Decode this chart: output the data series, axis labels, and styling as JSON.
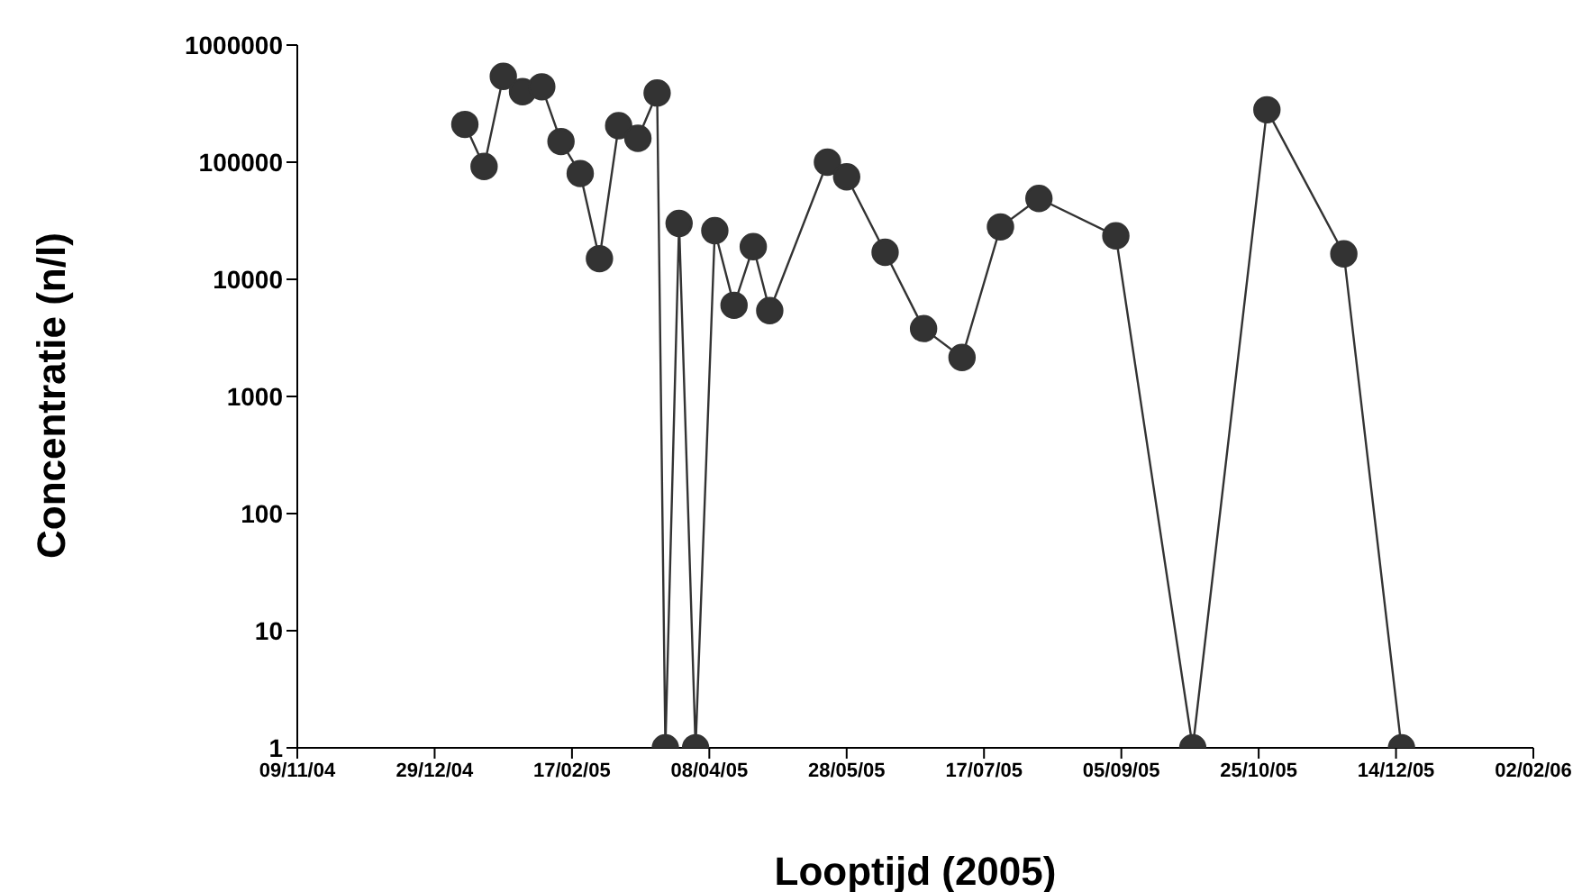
{
  "chart_data": {
    "type": "line",
    "xlabel": "Looptijd (2005)",
    "ylabel": "Concentratie (n/l)",
    "x": [
      "2005-01-09",
      "2005-01-16",
      "2005-01-23",
      "2005-01-30",
      "2005-02-06",
      "2005-02-13",
      "2005-02-20",
      "2005-02-27",
      "2005-03-06",
      "2005-03-13",
      "2005-03-20",
      "2005-03-23",
      "2005-03-28",
      "2005-04-03",
      "2005-04-10",
      "2005-04-17",
      "2005-04-24",
      "2005-04-30",
      "2005-05-21",
      "2005-05-28",
      "2005-06-11",
      "2005-06-25",
      "2005-07-09",
      "2005-07-23",
      "2005-08-06",
      "2005-09-03",
      "2005-10-01",
      "2005-10-28",
      "2005-11-25",
      "2005-12-16"
    ],
    "series": [
      {
        "color": "#333333",
        "values": [
          210000,
          92000,
          540000,
          400000,
          440000,
          150000,
          80000,
          15000,
          205000,
          160000,
          390000,
          1,
          30000,
          1,
          26000,
          6000,
          19000,
          5400,
          100000,
          75000,
          17000,
          3800,
          2150,
          28000,
          49000,
          23500,
          1,
          280000,
          16500,
          1
        ]
      }
    ],
    "log": "y",
    "ylim": [
      1,
      1000000
    ],
    "yticks": [
      1,
      10,
      100,
      1000,
      10000,
      100000,
      1000000
    ],
    "xlim": [
      "2004-11-09",
      "2006-02-02"
    ],
    "xticks": [
      {
        "value": "2004-11-09",
        "label": "09/11/04"
      },
      {
        "value": "2004-12-29",
        "label": "29/12/04"
      },
      {
        "value": "2005-02-17",
        "label": "17/02/05"
      },
      {
        "value": "2005-04-08",
        "label": "08/04/05"
      },
      {
        "value": "2005-05-28",
        "label": "28/05/05"
      },
      {
        "value": "2005-07-17",
        "label": "17/07/05"
      },
      {
        "value": "2005-09-05",
        "label": "05/09/05"
      },
      {
        "value": "2005-10-25",
        "label": "25/10/05"
      },
      {
        "value": "2005-12-14",
        "label": "14/12/05"
      },
      {
        "value": "2006-02-02",
        "label": "02/02/06"
      }
    ],
    "marker": "circle",
    "line_style": "solid",
    "grid": false,
    "legend": false
  }
}
